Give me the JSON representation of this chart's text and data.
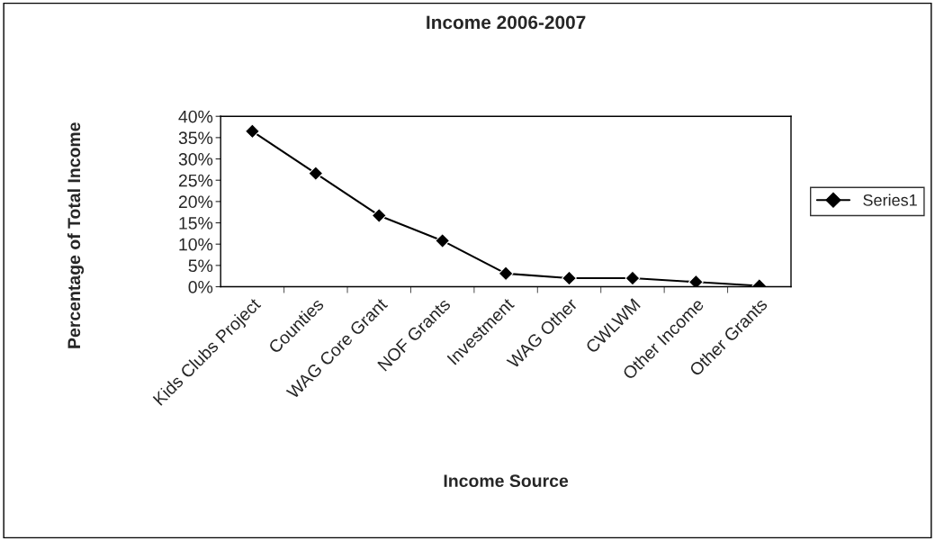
{
  "chart_data": {
    "type": "line",
    "title": "Income 2006-2007",
    "xlabel": "Income Source",
    "ylabel": "Percentage of Total Income",
    "categories": [
      "Kids Clubs Project",
      "Counties",
      "WAG Core Grant",
      "NOF Grants",
      "Investment",
      "WAG Other",
      "CWLWM",
      "Other Income",
      "Other Grants"
    ],
    "series": [
      {
        "name": "Series1",
        "color": "#000000",
        "values": [
          36.5,
          26.6,
          16.7,
          10.8,
          3.1,
          2.0,
          2.0,
          1.1,
          0.2
        ]
      }
    ],
    "ylim": [
      0,
      40
    ],
    "yticks": [
      {
        "value": 0,
        "label": "0%"
      },
      {
        "value": 5,
        "label": "5%"
      },
      {
        "value": 10,
        "label": "10%"
      },
      {
        "value": 15,
        "label": "15%"
      },
      {
        "value": 20,
        "label": "20%"
      },
      {
        "value": 25,
        "label": "25%"
      },
      {
        "value": 30,
        "label": "30%"
      },
      {
        "value": 35,
        "label": "35%"
      },
      {
        "value": 40,
        "label": "40%"
      }
    ],
    "grid": false,
    "legend": "right",
    "marker": "diamond",
    "line_style": "solid"
  }
}
